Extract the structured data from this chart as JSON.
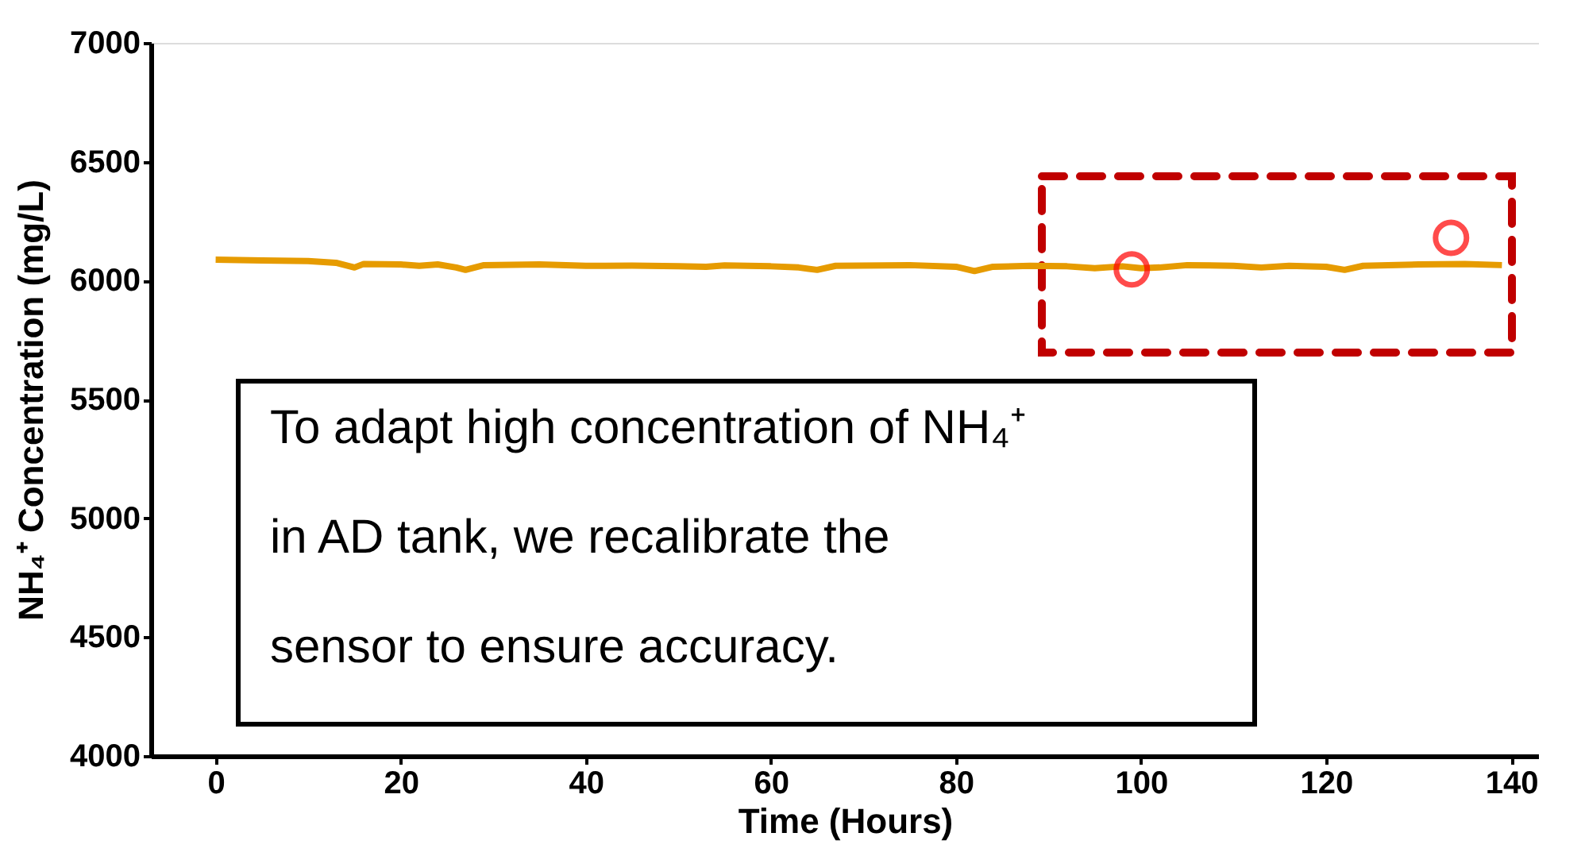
{
  "chart_data": {
    "type": "line",
    "xlabel": "Time (Hours)",
    "ylabel": "NH₄⁺ Concentration (mg/L)",
    "xlim": [
      -7,
      143
    ],
    "xticks": [
      0,
      20,
      40,
      60,
      80,
      100,
      120,
      140
    ],
    "ylim": [
      4000,
      7000
    ],
    "yticks": [
      4000,
      4500,
      5000,
      5500,
      6000,
      6500,
      7000
    ],
    "grid": false,
    "series": [
      {
        "color": "#e69b00",
        "marker": "none",
        "line_style": "solid",
        "x": [
          0,
          5,
          10,
          13,
          15,
          16,
          20,
          22,
          24,
          26,
          27,
          29,
          35,
          40,
          45,
          50,
          53,
          55,
          60,
          63,
          65,
          67,
          75,
          80,
          82,
          84,
          88,
          92,
          95,
          98,
          100,
          102,
          105,
          110,
          113,
          116,
          120,
          122,
          124,
          130,
          135,
          139
        ],
        "values": [
          6088,
          6085,
          6082,
          6075,
          6055,
          6070,
          6068,
          6062,
          6068,
          6055,
          6045,
          6065,
          6068,
          6062,
          6063,
          6060,
          6058,
          6064,
          6060,
          6055,
          6045,
          6062,
          6065,
          6058,
          6040,
          6058,
          6062,
          6060,
          6052,
          6060,
          6052,
          6055,
          6065,
          6062,
          6055,
          6062,
          6058,
          6045,
          6062,
          6068,
          6070,
          6065
        ]
      },
      {
        "type": "scatter",
        "color": "#ff0000",
        "marker": "circle",
        "x": [
          99,
          133.5
        ],
        "values": [
          6047,
          6180
        ]
      }
    ],
    "annotations": [
      "To adapt high concentration of NH₄⁺ in AD tank, we recalibrate the sensor to ensure accuracy."
    ]
  }
}
